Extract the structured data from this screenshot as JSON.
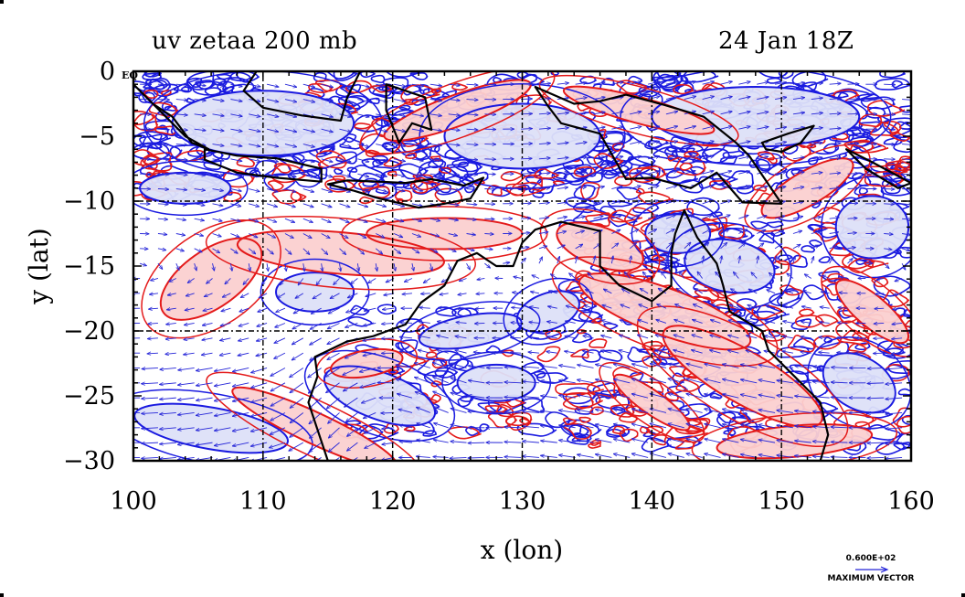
{
  "title_left": "uv zetaa 200 mb",
  "title_right": "24 Jan 18Z",
  "equator_label": "EQ",
  "x_axis": {
    "label": "x (lon)",
    "ticks": [
      100,
      110,
      120,
      130,
      140,
      150,
      160
    ],
    "tick_labels": [
      "100",
      "110",
      "120",
      "130",
      "140",
      "150",
      "160"
    ],
    "range": [
      100,
      160
    ]
  },
  "y_axis": {
    "label": "y (lat)",
    "ticks": [
      0,
      -5,
      -10,
      -15,
      -20,
      -25,
      -30
    ],
    "tick_labels": [
      "0",
      "−5",
      "−10",
      "−15",
      "−20",
      "−25",
      "−30"
    ],
    "range": [
      -30,
      0
    ]
  },
  "legend": {
    "scale_value": "0.600E+02",
    "label": "MAXIMUM VECTOR"
  },
  "colors": {
    "positive_contour": "#e41a1a",
    "positive_fill": "#fbd0d0",
    "negative_contour": "#1a1ae0",
    "negative_fill": "#dde0f8",
    "vectors": "#2525d8",
    "coastline": "#000000",
    "grid": "#000000"
  },
  "map": {
    "grid_lines_lon": [
      110,
      120,
      130,
      140,
      150
    ],
    "grid_lines_lat": [
      -10,
      -20
    ],
    "wind_band_center_lat": -15,
    "wind_direction_north": "westward",
    "wind_direction_south": "eastward",
    "coastlines": [
      {
        "name": "sumatra",
        "points": [
          [
            100,
            -1
          ],
          [
            101.5,
            -2.5
          ],
          [
            103,
            -3.5
          ],
          [
            104.5,
            -5.5
          ],
          [
            105.8,
            -6
          ],
          [
            104,
            -5
          ],
          [
            102,
            -3
          ],
          [
            100.5,
            -1.5
          ]
        ]
      },
      {
        "name": "java",
        "points": [
          [
            105.5,
            -6
          ],
          [
            108,
            -6.5
          ],
          [
            111,
            -6.7
          ],
          [
            114.5,
            -7.5
          ],
          [
            114.5,
            -8.5
          ],
          [
            111,
            -8.2
          ],
          [
            108,
            -7.8
          ],
          [
            105.5,
            -6.8
          ]
        ]
      },
      {
        "name": "borneo",
        "points": [
          [
            108.5,
            -1.5
          ],
          [
            110,
            -2.8
          ],
          [
            113,
            -3.4
          ],
          [
            116,
            -3.8
          ],
          [
            116.5,
            -2
          ],
          [
            117.5,
            0
          ],
          [
            109.5,
            0
          ]
        ]
      },
      {
        "name": "sulawesi",
        "points": [
          [
            119.5,
            -1
          ],
          [
            119.5,
            -3
          ],
          [
            120.5,
            -5.5
          ],
          [
            121.5,
            -4
          ],
          [
            123,
            -4.5
          ],
          [
            122.5,
            -2
          ],
          [
            121,
            -1.5
          ]
        ]
      },
      {
        "name": "lesser-sunda",
        "points": [
          [
            115,
            -8.7
          ],
          [
            116.5,
            -8.4
          ],
          [
            119,
            -8.5
          ],
          [
            121,
            -8.6
          ],
          [
            123,
            -8.3
          ],
          [
            125.5,
            -8.8
          ],
          [
            127,
            -8.2
          ],
          [
            126,
            -9.8
          ],
          [
            124,
            -10.2
          ],
          [
            122,
            -10.5
          ],
          [
            119,
            -9.8
          ],
          [
            117,
            -9.2
          ]
        ]
      },
      {
        "name": "new-guinea",
        "points": [
          [
            131,
            -1.2
          ],
          [
            134,
            -2.5
          ],
          [
            136,
            -2.3
          ],
          [
            138,
            -1.8
          ],
          [
            141,
            -2.6
          ],
          [
            144,
            -3.5
          ],
          [
            146.5,
            -5.5
          ],
          [
            147.5,
            -6.5
          ],
          [
            150,
            -10.2
          ],
          [
            147,
            -10.1
          ],
          [
            145,
            -7.8
          ],
          [
            143,
            -9
          ],
          [
            140,
            -8.2
          ],
          [
            138,
            -8.3
          ],
          [
            136,
            -4.8
          ],
          [
            133,
            -4
          ],
          [
            132,
            -2.7
          ]
        ]
      },
      {
        "name": "new-britain",
        "points": [
          [
            148.5,
            -5.5
          ],
          [
            150.5,
            -4.8
          ],
          [
            152.5,
            -4.2
          ],
          [
            151.5,
            -5.5
          ],
          [
            150,
            -6.2
          ],
          [
            148.8,
            -6
          ]
        ]
      },
      {
        "name": "solomons",
        "points": [
          [
            155,
            -6
          ],
          [
            157,
            -7
          ],
          [
            160,
            -8.6
          ],
          [
            159,
            -9
          ],
          [
            156.5,
            -7.5
          ]
        ]
      },
      {
        "name": "australia",
        "points": [
          [
            114,
            -22
          ],
          [
            114.2,
            -23.5
          ],
          [
            113.5,
            -25.5
          ],
          [
            114.5,
            -28.5
          ],
          [
            115,
            -30
          ],
          [
            115.6,
            -30
          ],
          [
            116,
            -30
          ],
          [
            153,
            -30
          ],
          [
            153.6,
            -28
          ],
          [
            153,
            -25.5
          ],
          [
            151,
            -23.5
          ],
          [
            149,
            -21.5
          ],
          [
            148.5,
            -20
          ],
          [
            146,
            -18.5
          ],
          [
            145.5,
            -16.5
          ],
          [
            145,
            -14.8
          ],
          [
            143.5,
            -12.8
          ],
          [
            142.5,
            -10.7
          ],
          [
            141.8,
            -12.5
          ],
          [
            141.5,
            -14
          ],
          [
            141.5,
            -16.5
          ],
          [
            140,
            -17.7
          ],
          [
            137.5,
            -16.5
          ],
          [
            136,
            -15
          ],
          [
            136,
            -12.3
          ],
          [
            133,
            -11.6
          ],
          [
            131,
            -12.2
          ],
          [
            130,
            -13.2
          ],
          [
            129.3,
            -15
          ],
          [
            128,
            -15
          ],
          [
            126.5,
            -14
          ],
          [
            125,
            -14.6
          ],
          [
            124,
            -16.5
          ],
          [
            122.2,
            -17.8
          ],
          [
            121,
            -19.5
          ],
          [
            118.5,
            -20.4
          ],
          [
            116.5,
            -20.8
          ]
        ]
      }
    ],
    "positive_regions": [
      {
        "center": [
          106,
          -16
        ],
        "radii": [
          4.5,
          2.2
        ],
        "angle": -35
      },
      {
        "center": [
          116,
          -14
        ],
        "radii": [
          8,
          1.6
        ],
        "angle": 5
      },
      {
        "center": [
          124,
          -12.5
        ],
        "radii": [
          6,
          1.2
        ],
        "angle": 0
      },
      {
        "center": [
          114,
          -27.5
        ],
        "radii": [
          7,
          1.2
        ],
        "angle": 25
      },
      {
        "center": [
          118,
          -22.5
        ],
        "radii": [
          2.8,
          1
        ],
        "angle": -10
      },
      {
        "center": [
          136,
          -13.5
        ],
        "radii": [
          3.5,
          1.5
        ],
        "angle": 20
      },
      {
        "center": [
          141,
          -18.5
        ],
        "radii": [
          7,
          1.8
        ],
        "angle": 20
      },
      {
        "center": [
          147,
          -23.5
        ],
        "radii": [
          7,
          2
        ],
        "angle": 30
      },
      {
        "center": [
          151,
          -28.5
        ],
        "radii": [
          6,
          1.2
        ],
        "angle": -5
      },
      {
        "center": [
          152,
          -9
        ],
        "radii": [
          4,
          1.3
        ],
        "angle": -30
      },
      {
        "center": [
          125,
          -3
        ],
        "radii": [
          6,
          1.2
        ],
        "angle": -20
      },
      {
        "center": [
          139,
          -3
        ],
        "radii": [
          6,
          1
        ],
        "angle": 15
      },
      {
        "center": [
          140,
          -25.5
        ],
        "radii": [
          3.5,
          0.9
        ],
        "angle": 35
      },
      {
        "center": [
          157,
          -18.5
        ],
        "radii": [
          3.5,
          1.2
        ],
        "angle": 40
      }
    ],
    "negative_regions": [
      {
        "center": [
          119,
          -25
        ],
        "radii": [
          4.5,
          1.8
        ],
        "angle": 20
      },
      {
        "center": [
          106,
          -27.5
        ],
        "radii": [
          6,
          1.6
        ],
        "angle": 10
      },
      {
        "center": [
          128,
          -24
        ],
        "radii": [
          3,
          1.4
        ],
        "angle": 0
      },
      {
        "center": [
          132,
          -18.5
        ],
        "radii": [
          2.5,
          1.4
        ],
        "angle": -20
      },
      {
        "center": [
          146,
          -15
        ],
        "radii": [
          3.5,
          2
        ],
        "angle": 10
      },
      {
        "center": [
          157,
          -12
        ],
        "radii": [
          2.8,
          2.4
        ],
        "angle": 0
      },
      {
        "center": [
          114,
          -17
        ],
        "radii": [
          3,
          1.5
        ],
        "angle": 0
      },
      {
        "center": [
          126,
          -20
        ],
        "radii": [
          4,
          1.2
        ],
        "angle": -10
      },
      {
        "center": [
          142,
          -12.5
        ],
        "radii": [
          2.5,
          1.5
        ],
        "angle": 0
      },
      {
        "center": [
          156,
          -24
        ],
        "radii": [
          3,
          2
        ],
        "angle": 30
      },
      {
        "center": [
          110,
          -4
        ],
        "radii": [
          7,
          2.5
        ],
        "angle": 0
      },
      {
        "center": [
          130,
          -5
        ],
        "radii": [
          6,
          2.5
        ],
        "angle": 0
      },
      {
        "center": [
          148,
          -3.5
        ],
        "radii": [
          8,
          2.3
        ],
        "angle": 0
      },
      {
        "center": [
          104,
          -9
        ],
        "radii": [
          3.5,
          1.2
        ],
        "angle": 0
      }
    ]
  }
}
